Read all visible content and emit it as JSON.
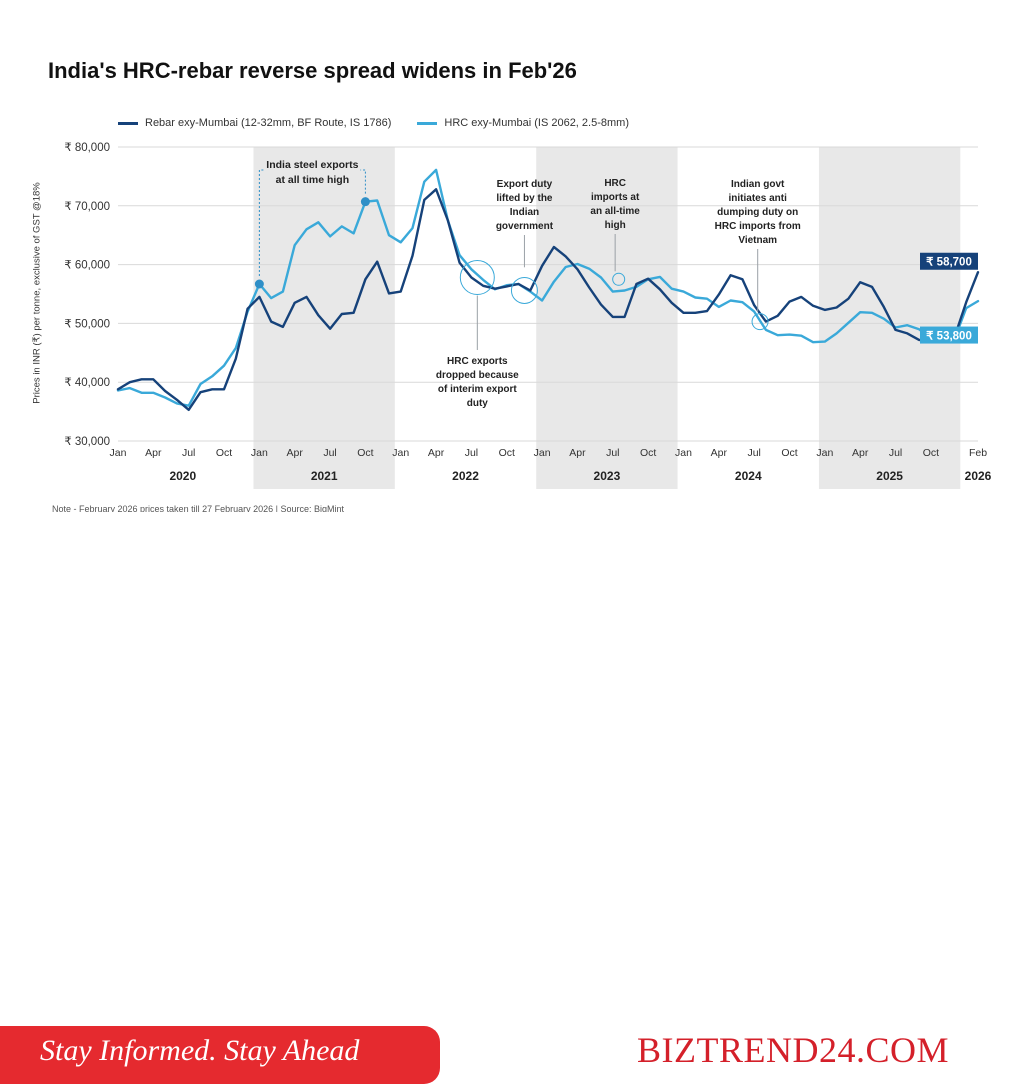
{
  "site": {
    "tagline": "Stay Informed. Stay Ahead",
    "brand": "BIZTREND24.COM"
  },
  "note": "Note - February 2026 prices taken till 27 February 2026 | Source: BigMint",
  "chart_data": {
    "type": "line",
    "title": "India's HRC-rebar reverse spread widens in Feb'26",
    "ylabel": "Prices in INR (₹) per tonne, exclusive of GST @18%",
    "ylim": [
      30000,
      80000
    ],
    "yticks": [
      30000,
      40000,
      50000,
      60000,
      70000,
      80000
    ],
    "ytick_labels": [
      "₹ 30,000",
      "₹ 40,000",
      "₹ 50,000",
      "₹ 60,000",
      "₹ 70,000",
      "₹ 80,000"
    ],
    "x_start": "2020-01",
    "x_end": "2026-02",
    "xticks": [
      {
        "x": "2020-01",
        "label": "Jan"
      },
      {
        "x": "2020-04",
        "label": "Apr"
      },
      {
        "x": "2020-07",
        "label": "Jul"
      },
      {
        "x": "2020-10",
        "label": "Oct"
      },
      {
        "x": "2021-01",
        "label": "Jan"
      },
      {
        "x": "2021-04",
        "label": "Apr"
      },
      {
        "x": "2021-07",
        "label": "Jul"
      },
      {
        "x": "2021-10",
        "label": "Oct"
      },
      {
        "x": "2022-01",
        "label": "Jan"
      },
      {
        "x": "2022-04",
        "label": "Apr"
      },
      {
        "x": "2022-07",
        "label": "Jul"
      },
      {
        "x": "2022-10",
        "label": "Oct"
      },
      {
        "x": "2023-01",
        "label": "Jan"
      },
      {
        "x": "2023-04",
        "label": "Apr"
      },
      {
        "x": "2023-07",
        "label": "Jul"
      },
      {
        "x": "2023-10",
        "label": "Oct"
      },
      {
        "x": "2024-01",
        "label": "Jan"
      },
      {
        "x": "2024-04",
        "label": "Apr"
      },
      {
        "x": "2024-07",
        "label": "Jul"
      },
      {
        "x": "2024-10",
        "label": "Oct"
      },
      {
        "x": "2025-01",
        "label": "Jan"
      },
      {
        "x": "2025-04",
        "label": "Apr"
      },
      {
        "x": "2025-07",
        "label": "Jul"
      },
      {
        "x": "2025-10",
        "label": "Oct"
      },
      {
        "x": "2026-02",
        "label": "Feb"
      }
    ],
    "years": [
      {
        "label": "2020",
        "start": "2020-01",
        "end": "2020-12",
        "shaded": false
      },
      {
        "label": "2021",
        "start": "2021-01",
        "end": "2021-12",
        "shaded": true
      },
      {
        "label": "2022",
        "start": "2022-01",
        "end": "2022-12",
        "shaded": false
      },
      {
        "label": "2023",
        "start": "2023-01",
        "end": "2023-12",
        "shaded": true
      },
      {
        "label": "2024",
        "start": "2024-01",
        "end": "2024-12",
        "shaded": false
      },
      {
        "label": "2025",
        "start": "2025-01",
        "end": "2025-12",
        "shaded": true
      },
      {
        "label": "2026",
        "start": "2026-01",
        "end": "2026-02",
        "shaded": false
      }
    ],
    "series": [
      {
        "name": "Rebar exy-Mumbai (12-32mm, BF Route, IS 1786)",
        "color": "#16427a",
        "values": [
          38800,
          40000,
          40500,
          40500,
          38500,
          37000,
          35300,
          38300,
          38800,
          38800,
          44000,
          52500,
          54500,
          50300,
          49400,
          53500,
          54500,
          51400,
          49100,
          51600,
          51800,
          57500,
          60500,
          55100,
          55400,
          61500,
          71000,
          72800,
          67500,
          60300,
          57800,
          56400,
          55900,
          56300,
          56700,
          55600,
          59800,
          63000,
          61400,
          59200,
          56100,
          53200,
          51100,
          51100,
          56700,
          57600,
          55800,
          53500,
          51800,
          51800,
          52100,
          54900,
          58200,
          57500,
          53100,
          50300,
          51300,
          53700,
          54500,
          53000,
          52300,
          52700,
          54200,
          57000,
          56200,
          52800,
          48900,
          48300,
          47200,
          47000,
          47100,
          47600,
          53600,
          58700
        ]
      },
      {
        "name": "HRC exy-Mumbai (IS 2062, 2.5-8mm)",
        "color": "#3aa9d9",
        "values": [
          38600,
          39000,
          38200,
          38200,
          37400,
          36400,
          36000,
          39700,
          41000,
          42800,
          45800,
          52000,
          56700,
          54300,
          55400,
          63300,
          66000,
          67200,
          64800,
          66500,
          65300,
          70700,
          70900,
          65000,
          63800,
          66200,
          74100,
          76100,
          67500,
          61600,
          59200,
          57400,
          55800,
          56500,
          56700,
          55400,
          53900,
          57100,
          59600,
          60100,
          59300,
          57800,
          55400,
          55600,
          56200,
          57500,
          57900,
          55900,
          55400,
          54400,
          54200,
          52800,
          53900,
          53600,
          52000,
          48900,
          48000,
          48100,
          47900,
          46800,
          46900,
          48300,
          50100,
          51900,
          51800,
          50800,
          49300,
          49700,
          49000,
          47500,
          46900,
          47300,
          52600,
          53800
        ]
      }
    ],
    "annotations": [
      {
        "text": [
          "India steel exports",
          "at all time high"
        ]
      },
      {
        "text": [
          "Export duty",
          "lifted by the",
          "Indian",
          "government"
        ]
      },
      {
        "text": [
          "HRC",
          "imports at",
          "an all-time",
          "high"
        ]
      },
      {
        "text": [
          "Indian govt",
          "initiates anti",
          "dumping duty on",
          "HRC imports from",
          "Vietnam"
        ]
      },
      {
        "text": [
          "HRC exports",
          "dropped because",
          "of interim export",
          "duty"
        ]
      }
    ],
    "end_labels": [
      {
        "text": "₹ 58,700",
        "series": 0,
        "style": "dark"
      },
      {
        "text": "₹ 53,800",
        "series": 1,
        "style": "light"
      }
    ],
    "grid": "horizontal"
  }
}
